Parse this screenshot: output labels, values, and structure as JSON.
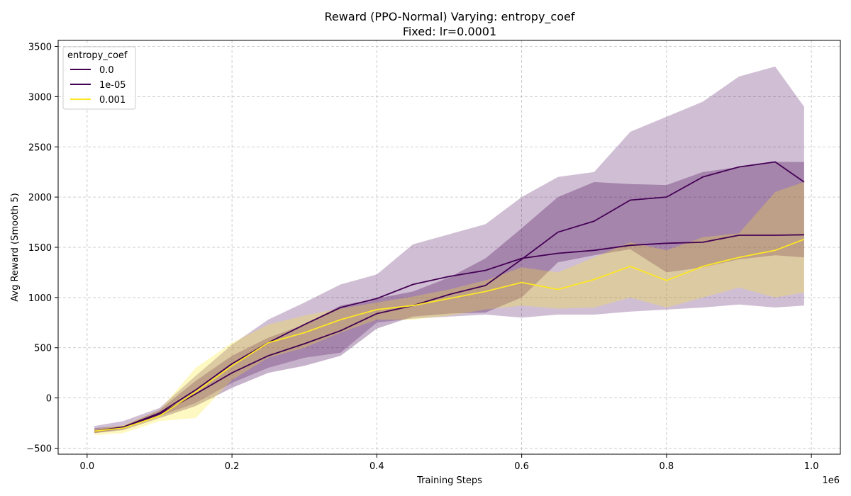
{
  "chart_data": {
    "type": "line",
    "title": "Reward (PPO-Normal) Varying: entropy_coef",
    "subtitle": "Fixed: lr=0.0001",
    "xlabel": "Training Steps",
    "ylabel": "Avg Reward (Smooth 5)",
    "x_offset_label": "1e6",
    "xlim": [
      -0.04,
      1.04
    ],
    "ylim": [
      -560,
      3560
    ],
    "x_ticks": [
      0.0,
      0.2,
      0.4,
      0.6,
      0.8,
      1.0
    ],
    "x_tick_labels": [
      "0.0",
      "0.2",
      "0.4",
      "0.6",
      "0.8",
      "1.0"
    ],
    "y_ticks": [
      -500,
      0,
      500,
      1000,
      1500,
      2000,
      2500,
      3000,
      3500
    ],
    "y_tick_labels": [
      "−500",
      "0",
      "500",
      "1000",
      "1500",
      "2000",
      "2500",
      "3000",
      "3500"
    ],
    "grid": true,
    "legend": {
      "title": "entropy_coef",
      "placement": "top-left"
    },
    "x": [
      0.01,
      0.05,
      0.1,
      0.15,
      0.2,
      0.25,
      0.3,
      0.35,
      0.4,
      0.45,
      0.5,
      0.55,
      0.6,
      0.65,
      0.7,
      0.75,
      0.8,
      0.85,
      0.9,
      0.95,
      0.99
    ],
    "series": [
      {
        "name": "0.0",
        "color": "#440154",
        "band_opacity": 0.25,
        "values": [
          -330,
          -290,
          -150,
          80,
          340,
          550,
          730,
          900,
          990,
          1130,
          1210,
          1270,
          1390,
          1440,
          1470,
          1520,
          1540,
          1550,
          1620,
          1620,
          1625
        ],
        "lower": [
          -350,
          -310,
          -180,
          -50,
          150,
          300,
          400,
          450,
          750,
          790,
          810,
          830,
          800,
          830,
          830,
          860,
          880,
          900,
          930,
          900,
          920
        ],
        "upper": [
          -280,
          -230,
          -100,
          220,
          530,
          780,
          950,
          1130,
          1230,
          1530,
          1630,
          1730,
          2000,
          2200,
          2250,
          2650,
          2800,
          2950,
          3200,
          3300,
          2900
        ]
      },
      {
        "name": "1e-05",
        "color": "#440154",
        "band_opacity": 0.3,
        "values": [
          -330,
          -300,
          -160,
          40,
          250,
          420,
          540,
          670,
          840,
          920,
          1030,
          1120,
          1380,
          1650,
          1760,
          1970,
          2000,
          2200,
          2300,
          2350,
          2150
        ],
        "lower": [
          -350,
          -320,
          -200,
          -80,
          100,
          250,
          320,
          420,
          690,
          810,
          840,
          850,
          1000,
          1350,
          1420,
          1480,
          1250,
          1300,
          1380,
          1420,
          1400
        ],
        "upper": [
          -300,
          -280,
          -120,
          170,
          420,
          600,
          730,
          920,
          990,
          1060,
          1200,
          1390,
          1690,
          2000,
          2150,
          2130,
          2120,
          2250,
          2300,
          2350,
          2350
        ]
      },
      {
        "name": "0.001",
        "color": "#fde725",
        "band_opacity": 0.28,
        "values": [
          -330,
          -300,
          -180,
          60,
          320,
          550,
          650,
          780,
          880,
          920,
          990,
          1060,
          1150,
          1080,
          1180,
          1310,
          1170,
          1310,
          1400,
          1470,
          1580
        ],
        "lower": [
          -370,
          -350,
          -230,
          -200,
          180,
          400,
          500,
          650,
          780,
          780,
          820,
          880,
          920,
          890,
          900,
          1000,
          900,
          1000,
          1100,
          1000,
          1050
        ],
        "upper": [
          -310,
          -270,
          -120,
          300,
          550,
          730,
          820,
          890,
          950,
          1010,
          1080,
          1170,
          1300,
          1250,
          1400,
          1550,
          1470,
          1600,
          1640,
          2050,
          2150
        ]
      }
    ]
  }
}
